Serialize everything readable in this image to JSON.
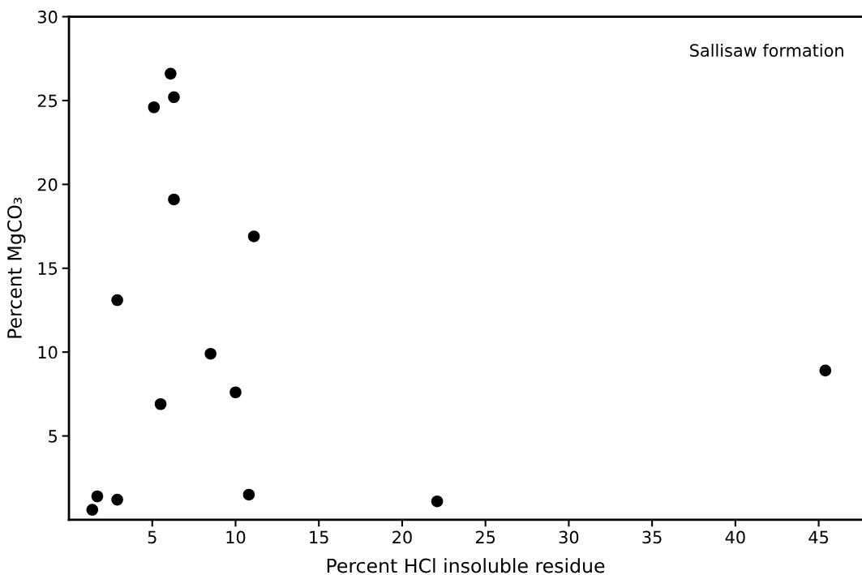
{
  "chart_data": {
    "type": "scatter",
    "xlabel": "Percent HCl insoluble residue",
    "ylabel": "Percent MgCO₃",
    "annotations": [
      "Sallisaw formation"
    ],
    "x": [
      6.1,
      6.3,
      5.1,
      6.3,
      11.1,
      2.9,
      8.5,
      10.0,
      5.5,
      1.7,
      2.9,
      1.4,
      10.8,
      22.1,
      45.4
    ],
    "values": [
      26.6,
      25.2,
      24.6,
      19.1,
      16.9,
      13.1,
      9.9,
      7.6,
      6.9,
      1.4,
      1.2,
      0.6,
      1.5,
      1.1,
      8.9
    ],
    "color": "#000000",
    "marker": "circle",
    "xlim": [
      0,
      47.6
    ],
    "ylim": [
      0,
      30
    ],
    "xticks": [
      5,
      10,
      15,
      20,
      25,
      30,
      35,
      40,
      45
    ],
    "yticks": [
      5,
      10,
      15,
      20,
      25,
      30
    ]
  }
}
